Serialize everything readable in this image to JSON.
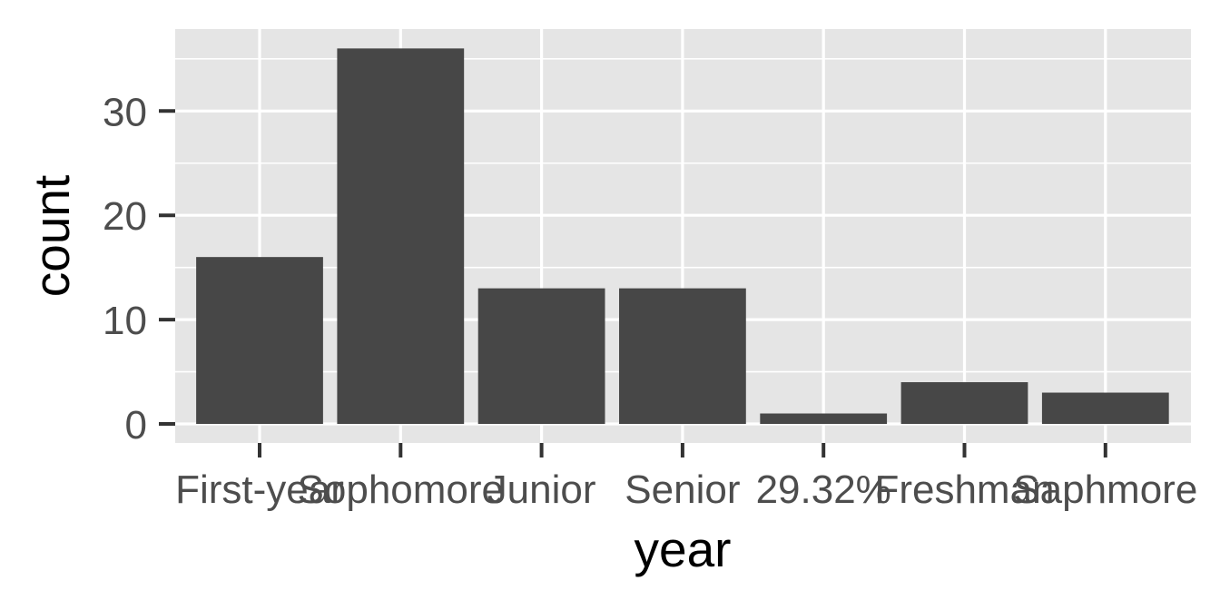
{
  "chart_data": {
    "type": "bar",
    "title": "",
    "xlabel": "year",
    "ylabel": "count",
    "categories": [
      "First-year",
      "Sophomore",
      "Junior",
      "Senior",
      "29.32%",
      "Freshman",
      "Saphmore"
    ],
    "values": [
      16,
      36,
      13,
      13,
      1,
      4,
      3
    ],
    "ylim": [
      0,
      37.8
    ],
    "yticks": [
      0,
      10,
      20,
      30
    ],
    "ytick_labels": [
      "0",
      "10",
      "20",
      "30"
    ],
    "grid": true,
    "legend": "none",
    "colors": {
      "panel_background": "#e5e5e5",
      "grid": "#ffffff",
      "bar": "#474747",
      "tick_text": "#4d4d4d",
      "tick_mark": "#333333",
      "title_text": "#000000"
    }
  }
}
